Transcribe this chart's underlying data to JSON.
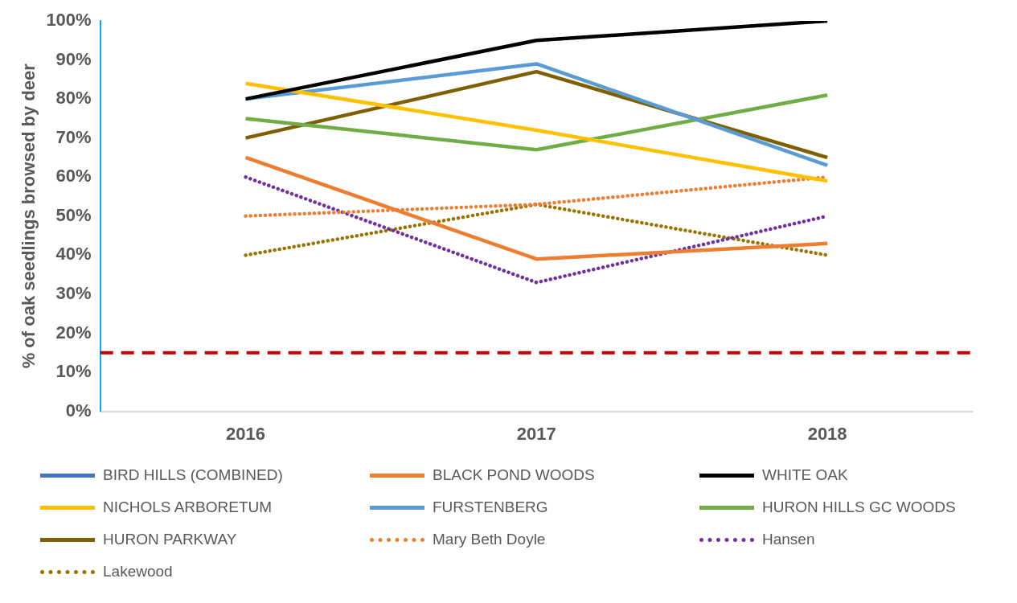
{
  "chart_data": {
    "type": "line",
    "ylabel": "% of oak seedlings browsed by deer",
    "categories": [
      "2016",
      "2017",
      "2018"
    ],
    "ylim": [
      0,
      100
    ],
    "yticks": [
      {
        "value": 0,
        "label": "0%"
      },
      {
        "value": 10,
        "label": "10%"
      },
      {
        "value": 20,
        "label": "20%"
      },
      {
        "value": 30,
        "label": "30%"
      },
      {
        "value": 40,
        "label": "40%"
      },
      {
        "value": 50,
        "label": "50%"
      },
      {
        "value": 60,
        "label": "60%"
      },
      {
        "value": 70,
        "label": "70%"
      },
      {
        "value": 80,
        "label": "80%"
      },
      {
        "value": 90,
        "label": "90%"
      },
      {
        "value": 100,
        "label": "100%"
      }
    ],
    "grid": false,
    "legend": "bottom",
    "marker": "none",
    "line_style": "solid",
    "series": [
      {
        "name": "BIRD HILLS (COMBINED)",
        "color": "#4472c4",
        "values": [
          null,
          null,
          null
        ]
      },
      {
        "name": "BLACK POND WOODS",
        "color": "#ed7d31",
        "values": [
          65,
          39,
          43
        ]
      },
      {
        "name": "WHITE OAK",
        "color": "#000000",
        "values": [
          80,
          95,
          100
        ]
      },
      {
        "name": "NICHOLS ARBORETUM",
        "color": "#ffc000",
        "values": [
          84,
          72,
          59
        ]
      },
      {
        "name": "FURSTENBERG",
        "color": "#5b9bd5",
        "values": [
          80,
          89,
          63
        ]
      },
      {
        "name": "HURON HILLS GC WOODS",
        "color": "#70ad47",
        "values": [
          75,
          67,
          81
        ]
      },
      {
        "name": "HURON PARKWAY",
        "color": "#7f6000",
        "values": [
          70,
          87,
          65
        ]
      },
      {
        "name": "Mary Beth Doyle",
        "color": "#ed7d31",
        "line_style": "dotted",
        "values": [
          50,
          53,
          60
        ]
      },
      {
        "name": "Hansen",
        "color": "#7030a0",
        "line_style": "dotted",
        "values": [
          60,
          33,
          50
        ]
      },
      {
        "name": "Lakewood",
        "color": "#997300",
        "line_style": "dotted",
        "values": [
          40,
          53,
          40
        ]
      }
    ],
    "ref_lines": [
      {
        "axis": "y",
        "value": 15,
        "color": "#c00000",
        "line_style": "dashed"
      }
    ]
  }
}
